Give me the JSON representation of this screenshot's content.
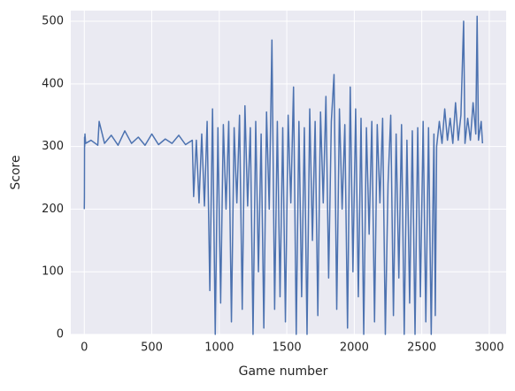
{
  "chart_data": {
    "type": "line",
    "xlabel": "Game number",
    "ylabel": "Score",
    "x": [
      0,
      1,
      2,
      3,
      5,
      10,
      50,
      100,
      110,
      150,
      200,
      250,
      300,
      350,
      400,
      450,
      500,
      550,
      600,
      650,
      700,
      750,
      800,
      810,
      830,
      850,
      870,
      890,
      910,
      930,
      950,
      970,
      990,
      1010,
      1030,
      1050,
      1070,
      1090,
      1110,
      1130,
      1150,
      1170,
      1190,
      1210,
      1230,
      1250,
      1270,
      1290,
      1310,
      1330,
      1350,
      1370,
      1390,
      1410,
      1430,
      1450,
      1470,
      1490,
      1510,
      1530,
      1550,
      1570,
      1590,
      1610,
      1630,
      1650,
      1670,
      1690,
      1710,
      1730,
      1750,
      1770,
      1790,
      1810,
      1830,
      1850,
      1870,
      1890,
      1910,
      1930,
      1950,
      1970,
      1990,
      2010,
      2030,
      2050,
      2070,
      2090,
      2110,
      2130,
      2150,
      2170,
      2190,
      2210,
      2230,
      2250,
      2270,
      2290,
      2310,
      2330,
      2350,
      2370,
      2390,
      2410,
      2430,
      2450,
      2470,
      2490,
      2510,
      2530,
      2550,
      2570,
      2590,
      2600,
      2610,
      2630,
      2650,
      2670,
      2690,
      2710,
      2730,
      2750,
      2770,
      2790,
      2810,
      2820,
      2840,
      2860,
      2880,
      2900,
      2910,
      2920,
      2940,
      2950
    ],
    "series": [
      {
        "name": "Score",
        "color": "#4c72b0",
        "values": [
          200,
          220,
          315,
          300,
          320,
          305,
          310,
          302,
          340,
          305,
          318,
          302,
          325,
          305,
          315,
          302,
          320,
          303,
          312,
          305,
          318,
          303,
          310,
          220,
          310,
          210,
          320,
          205,
          340,
          70,
          360,
          0,
          330,
          50,
          335,
          200,
          340,
          20,
          330,
          210,
          350,
          40,
          365,
          205,
          330,
          0,
          340,
          100,
          320,
          10,
          355,
          200,
          470,
          40,
          340,
          60,
          330,
          20,
          350,
          210,
          395,
          0,
          340,
          60,
          330,
          0,
          360,
          150,
          340,
          30,
          355,
          210,
          380,
          90,
          340,
          415,
          40,
          360,
          200,
          335,
          10,
          395,
          100,
          360,
          60,
          345,
          0,
          330,
          160,
          340,
          20,
          335,
          210,
          345,
          0,
          240,
          350,
          30,
          320,
          90,
          335,
          0,
          310,
          50,
          325,
          0,
          330,
          60,
          340,
          20,
          330,
          0,
          320,
          30,
          300,
          340,
          305,
          360,
          310,
          345,
          305,
          370,
          310,
          350,
          500,
          305,
          345,
          310,
          370,
          320,
          508,
          310,
          340,
          305
        ]
      }
    ],
    "xlim": [
      -100,
      3125
    ],
    "ylim": [
      0,
      517
    ],
    "xticks": [
      0,
      500,
      1000,
      1500,
      2000,
      2500,
      3000
    ],
    "yticks": [
      0,
      100,
      200,
      300,
      400,
      500
    ],
    "grid": true
  }
}
